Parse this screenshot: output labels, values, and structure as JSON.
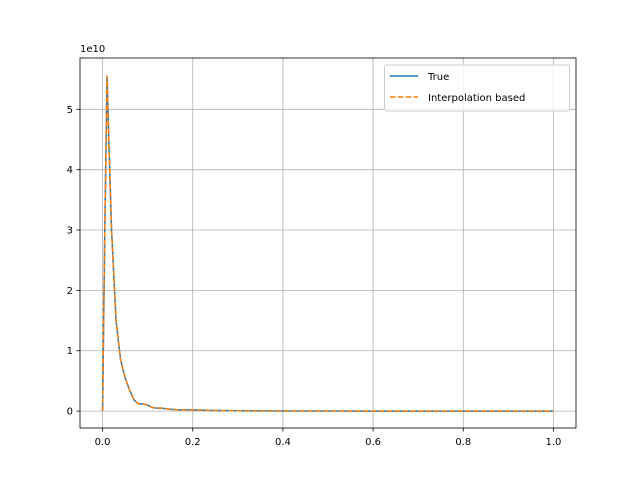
{
  "chart_data": {
    "type": "line",
    "title": "",
    "xlabel": "",
    "ylabel": "",
    "y_offset_label": "1e10",
    "xlim": [
      -0.05,
      1.05
    ],
    "ylim": [
      -0.28,
      5.85
    ],
    "x_ticks": [
      0.0,
      0.2,
      0.4,
      0.6,
      0.8,
      1.0
    ],
    "x_tick_labels": [
      "0.0",
      "0.2",
      "0.4",
      "0.6",
      "0.8",
      "1.0"
    ],
    "y_ticks": [
      0,
      1,
      2,
      3,
      4,
      5
    ],
    "y_tick_labels": [
      "0",
      "1",
      "2",
      "3",
      "4",
      "5"
    ],
    "grid": true,
    "legend_position": "top-right",
    "series": [
      {
        "name": "True",
        "color": "#1f77b4",
        "dash": "solid",
        "x": [
          0.0,
          0.005,
          0.01,
          0.015,
          0.02,
          0.03,
          0.04,
          0.05,
          0.06,
          0.07,
          0.08,
          0.09,
          0.1,
          0.11,
          0.12,
          0.13,
          0.15,
          0.17,
          0.2,
          0.25,
          0.3,
          0.4,
          0.5,
          0.6,
          0.7,
          0.8,
          0.9,
          1.0
        ],
        "y": [
          0.0,
          3.0,
          5.55,
          4.2,
          3.0,
          1.5,
          0.85,
          0.55,
          0.35,
          0.18,
          0.12,
          0.12,
          0.1,
          0.06,
          0.05,
          0.05,
          0.03,
          0.02,
          0.02,
          0.01,
          0.005,
          0.002,
          0.001,
          0.0,
          0.0,
          0.0,
          0.0,
          0.0
        ]
      },
      {
        "name": "Interpolation based",
        "color": "#ff7f0e",
        "dash": "dashed",
        "x": [
          0.0,
          0.005,
          0.01,
          0.015,
          0.02,
          0.03,
          0.04,
          0.05,
          0.06,
          0.07,
          0.08,
          0.09,
          0.1,
          0.11,
          0.12,
          0.13,
          0.15,
          0.17,
          0.2,
          0.25,
          0.3,
          0.4,
          0.5,
          0.6,
          0.7,
          0.8,
          0.9,
          1.0
        ],
        "y": [
          0.0,
          3.0,
          5.55,
          4.2,
          3.0,
          1.5,
          0.85,
          0.55,
          0.35,
          0.18,
          0.12,
          0.12,
          0.1,
          0.06,
          0.05,
          0.05,
          0.03,
          0.02,
          0.02,
          0.01,
          0.005,
          0.002,
          0.001,
          0.0,
          0.0,
          0.0,
          0.0,
          0.0
        ]
      }
    ]
  }
}
